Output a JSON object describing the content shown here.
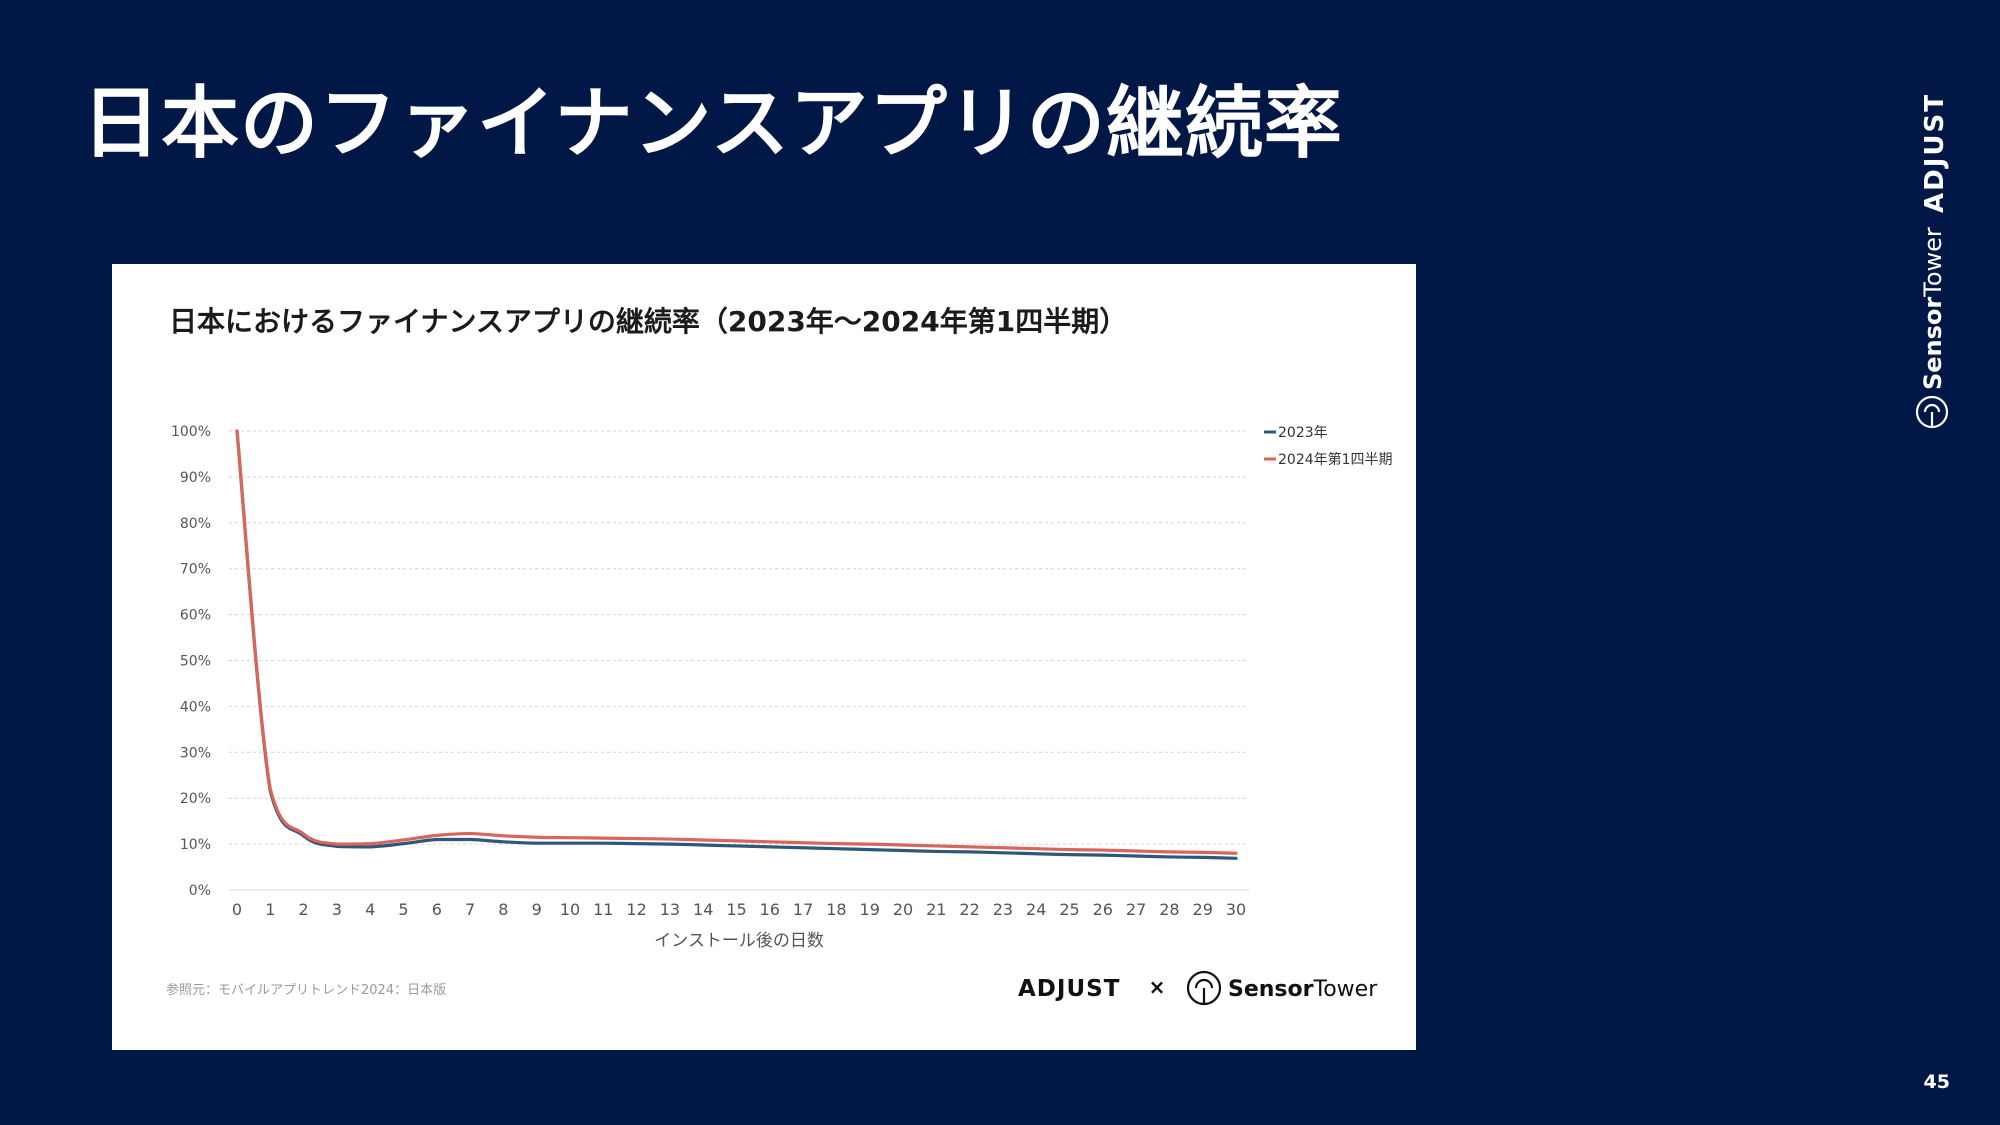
{
  "slide": {
    "title": "日本のファイナンスアプリの継続率",
    "page_number": "45"
  },
  "brand": {
    "adjust": "ADJUST",
    "sensor_bold": "Sensor",
    "sensor_light": "Tower",
    "separator": "×"
  },
  "source": "参照元：モバイルアプリトレンド2024：日本版",
  "colors": {
    "background": "#011847",
    "series_2023": "#2e5879",
    "series_2024": "#d9665b"
  },
  "chart_data": {
    "type": "line",
    "title": "日本におけるファイナンスアプリの継続率（2023年〜2024年第1四半期）",
    "xlabel": "インストール後の日数",
    "ylabel": "",
    "x": [
      0,
      1,
      2,
      3,
      4,
      5,
      6,
      7,
      8,
      9,
      10,
      11,
      12,
      13,
      14,
      15,
      16,
      17,
      18,
      19,
      20,
      21,
      22,
      23,
      24,
      25,
      26,
      27,
      28,
      29,
      30
    ],
    "x_ticks": [
      "0",
      "1",
      "2",
      "3",
      "4",
      "5",
      "6",
      "7",
      "8",
      "9",
      "10",
      "11",
      "12",
      "13",
      "14",
      "15",
      "16",
      "17",
      "18",
      "19",
      "20",
      "21",
      "22",
      "23",
      "24",
      "25",
      "26",
      "27",
      "28",
      "29",
      "30"
    ],
    "ylim": [
      0,
      100
    ],
    "y_ticks": [
      "0%",
      "10%",
      "20%",
      "30%",
      "40%",
      "50%",
      "60%",
      "70%",
      "80%",
      "90%",
      "100%"
    ],
    "grid": true,
    "legend_position": "top-right",
    "series": [
      {
        "name": "2023年",
        "color": "#2e5879",
        "values": [
          100,
          21.5,
          11.8,
          9.5,
          9.4,
          10.1,
          11.0,
          11.0,
          10.5,
          10.2,
          10.2,
          10.2,
          10.1,
          10.0,
          9.8,
          9.6,
          9.4,
          9.2,
          9.0,
          8.8,
          8.6,
          8.4,
          8.3,
          8.1,
          7.9,
          7.7,
          7.6,
          7.4,
          7.2,
          7.1,
          6.9
        ]
      },
      {
        "name": "2024年第1四半期",
        "color": "#d9665b",
        "values": [
          100,
          22.0,
          12.2,
          10.0,
          10.1,
          10.9,
          11.9,
          12.3,
          11.8,
          11.5,
          11.4,
          11.3,
          11.2,
          11.1,
          10.9,
          10.7,
          10.5,
          10.3,
          10.1,
          10.0,
          9.8,
          9.6,
          9.4,
          9.2,
          9.0,
          8.8,
          8.7,
          8.5,
          8.3,
          8.2,
          8.0
        ]
      }
    ]
  }
}
